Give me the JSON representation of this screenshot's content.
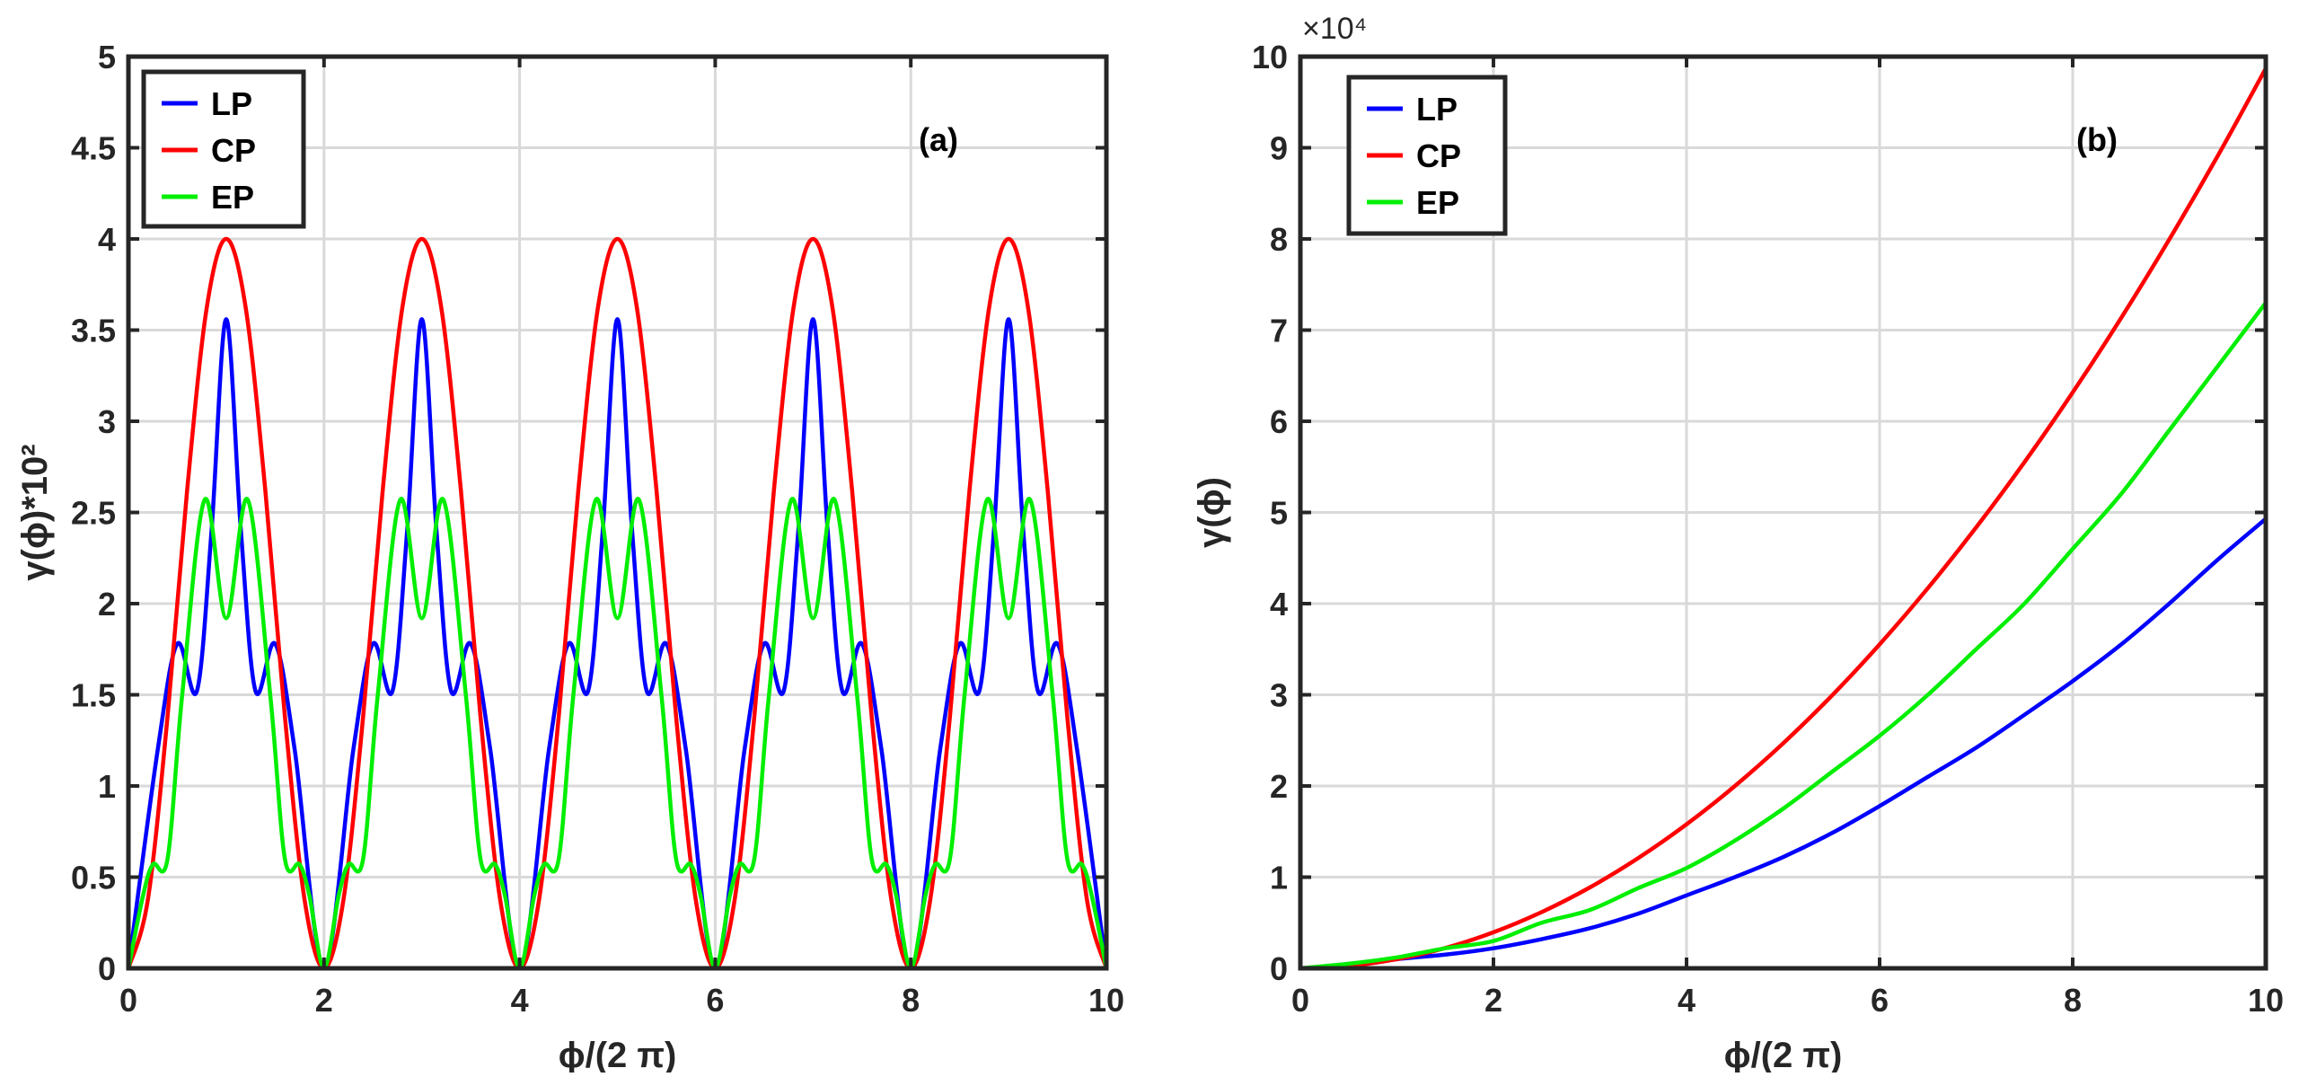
{
  "chart_data": [
    {
      "type": "line",
      "panel_label": "(a)",
      "xlabel": "ϕ/(2 π)",
      "ylabel": "γ(ϕ)*10²",
      "xlim": [
        0,
        10
      ],
      "ylim": [
        0,
        5
      ],
      "xticks": [
        0,
        2,
        4,
        6,
        8,
        10
      ],
      "yticks": [
        0,
        0.5,
        1,
        1.5,
        2,
        2.5,
        3,
        3.5,
        4,
        4.5,
        5
      ],
      "ytick_labels": [
        "0",
        "0.5",
        "1",
        "1.5",
        "2",
        "2.5",
        "3",
        "3.5",
        "4",
        "4.5",
        "5"
      ],
      "grid": true,
      "legend": "top-left",
      "series": [
        {
          "name": "LP",
          "color": "#0000ff",
          "x": [
            0,
            0.3,
            0.5,
            0.7,
            0.85,
            1.0,
            1.15,
            1.3,
            1.5,
            1.7,
            2.0,
            2.3,
            2.5,
            2.7,
            2.85,
            3.0,
            3.15,
            3.3,
            3.5,
            3.7,
            4.0,
            4.3,
            4.5,
            4.7,
            4.85,
            5.0,
            5.15,
            5.3,
            5.5,
            5.7,
            6.0,
            6.3,
            6.5,
            6.7,
            6.85,
            7.0,
            7.15,
            7.3,
            7.5,
            7.7,
            8.0,
            8.3,
            8.5,
            8.7,
            8.85,
            9.0,
            9.15,
            9.3,
            9.5,
            9.7,
            10.0
          ],
          "y": [
            0,
            1.2,
            1.78,
            1.52,
            2.4,
            3.56,
            2.4,
            1.52,
            1.78,
            1.2,
            0,
            1.2,
            1.78,
            1.52,
            2.4,
            3.56,
            2.4,
            1.52,
            1.78,
            1.2,
            0,
            1.2,
            1.78,
            1.52,
            2.4,
            3.56,
            2.4,
            1.52,
            1.78,
            1.2,
            0,
            1.2,
            1.78,
            1.52,
            2.4,
            3.56,
            2.4,
            1.52,
            1.78,
            1.2,
            0,
            1.2,
            1.78,
            1.52,
            2.4,
            3.56,
            2.4,
            1.52,
            1.78,
            1.2,
            0
          ]
        },
        {
          "name": "CP",
          "color": "#ff0000",
          "x": [
            0,
            0.2,
            0.4,
            0.6,
            0.8,
            1.0,
            1.2,
            1.4,
            1.6,
            1.8,
            2.0,
            2.2,
            2.4,
            2.6,
            2.8,
            3.0,
            3.2,
            3.4,
            3.6,
            3.8,
            4.0,
            4.2,
            4.4,
            4.6,
            4.8,
            5.0,
            5.2,
            5.4,
            5.6,
            5.8,
            6.0,
            6.2,
            6.4,
            6.6,
            6.8,
            7.0,
            7.2,
            7.4,
            7.6,
            7.8,
            8.0,
            8.2,
            8.4,
            8.6,
            8.8,
            9.0,
            9.2,
            9.4,
            9.6,
            9.8,
            10.0
          ],
          "y": [
            0,
            0.38,
            1.38,
            2.62,
            3.62,
            4.0,
            3.62,
            2.62,
            1.38,
            0.38,
            0,
            0.38,
            1.38,
            2.62,
            3.62,
            4.0,
            3.62,
            2.62,
            1.38,
            0.38,
            0,
            0.38,
            1.38,
            2.62,
            3.62,
            4.0,
            3.62,
            2.62,
            1.38,
            0.38,
            0,
            0.38,
            1.38,
            2.62,
            3.62,
            4.0,
            3.62,
            2.62,
            1.38,
            0.38,
            0,
            0.38,
            1.38,
            2.62,
            3.62,
            4.0,
            3.62,
            2.62,
            1.38,
            0.38,
            0
          ]
        },
        {
          "name": "EP",
          "color": "#00ee00",
          "x": [
            0,
            0.15,
            0.25,
            0.4,
            0.55,
            0.78,
            1.0,
            1.22,
            1.45,
            1.6,
            1.75,
            1.85,
            2.0,
            2.15,
            2.25,
            2.4,
            2.55,
            2.78,
            3.0,
            3.22,
            3.45,
            3.6,
            3.75,
            3.85,
            4.0,
            4.15,
            4.25,
            4.4,
            4.55,
            4.78,
            5.0,
            5.22,
            5.45,
            5.6,
            5.75,
            5.85,
            6.0,
            6.15,
            6.25,
            6.4,
            6.55,
            6.78,
            7.0,
            7.22,
            7.45,
            7.6,
            7.75,
            7.85,
            8.0,
            8.15,
            8.25,
            8.4,
            8.55,
            8.78,
            9.0,
            9.22,
            9.45,
            9.6,
            9.75,
            9.85,
            10.0
          ],
          "y": [
            0,
            0.4,
            0.57,
            0.6,
            1.5,
            2.57,
            1.92,
            2.57,
            1.5,
            0.6,
            0.57,
            0.4,
            0,
            0.4,
            0.57,
            0.6,
            1.5,
            2.57,
            1.92,
            2.57,
            1.5,
            0.6,
            0.57,
            0.4,
            0,
            0.4,
            0.57,
            0.6,
            1.5,
            2.57,
            1.92,
            2.57,
            1.5,
            0.6,
            0.57,
            0.4,
            0,
            0.4,
            0.57,
            0.6,
            1.5,
            2.57,
            1.92,
            2.57,
            1.5,
            0.6,
            0.57,
            0.4,
            0,
            0.4,
            0.57,
            0.6,
            1.5,
            2.57,
            1.92,
            2.57,
            1.5,
            0.6,
            0.57,
            0.4,
            0
          ]
        }
      ]
    },
    {
      "type": "line",
      "panel_label": "(b)",
      "xlabel": "ϕ/(2 π)",
      "ylabel": "γ(ϕ)",
      "y_exponent": "×10⁴",
      "xlim": [
        0,
        10
      ],
      "ylim": [
        0,
        100000
      ],
      "xticks": [
        0,
        2,
        4,
        6,
        8,
        10
      ],
      "yticks": [
        0,
        10000,
        20000,
        30000,
        40000,
        50000,
        60000,
        70000,
        80000,
        90000,
        100000
      ],
      "ytick_labels": [
        "0",
        "1",
        "2",
        "3",
        "4",
        "5",
        "6",
        "7",
        "8",
        "9",
        "10"
      ],
      "grid": true,
      "legend": "top-left",
      "series": [
        {
          "name": "LP",
          "color": "#0000ff",
          "x": [
            0,
            0.5,
            1,
            1.5,
            2,
            2.5,
            3,
            3.5,
            4,
            4.5,
            5,
            5.5,
            6,
            6.5,
            7,
            7.5,
            8,
            8.5,
            9,
            9.5,
            10
          ],
          "y": [
            0,
            300,
            1000,
            1500,
            2200,
            3200,
            4400,
            6000,
            8000,
            10000,
            12200,
            14800,
            17800,
            21000,
            24200,
            27800,
            31500,
            35500,
            40000,
            44800,
            49300
          ]
        },
        {
          "name": "CP",
          "color": "#ff0000",
          "x": [
            0,
            0.5,
            1,
            1.5,
            2,
            2.5,
            3,
            3.5,
            4,
            4.5,
            5,
            5.5,
            6,
            6.5,
            7,
            7.5,
            8,
            8.5,
            9,
            9.5,
            10
          ],
          "y": [
            0,
            250,
            1000,
            2220,
            3950,
            6170,
            8880,
            12090,
            15790,
            19990,
            24670,
            29850,
            35530,
            41700,
            48360,
            55510,
            63160,
            71300,
            79940,
            89060,
            98700
          ]
        },
        {
          "name": "EP",
          "color": "#00ee00",
          "x": [
            0,
            0.5,
            1,
            1.5,
            2,
            2.5,
            3,
            3.5,
            4,
            4.5,
            5,
            5.5,
            6,
            6.5,
            7,
            7.5,
            8,
            8.5,
            9,
            9.5,
            10
          ],
          "y": [
            0,
            500,
            1200,
            2200,
            3000,
            5000,
            6400,
            8800,
            11000,
            14000,
            17500,
            21500,
            25500,
            30000,
            35000,
            40000,
            46000,
            52000,
            59000,
            66000,
            73000
          ]
        }
      ]
    }
  ]
}
